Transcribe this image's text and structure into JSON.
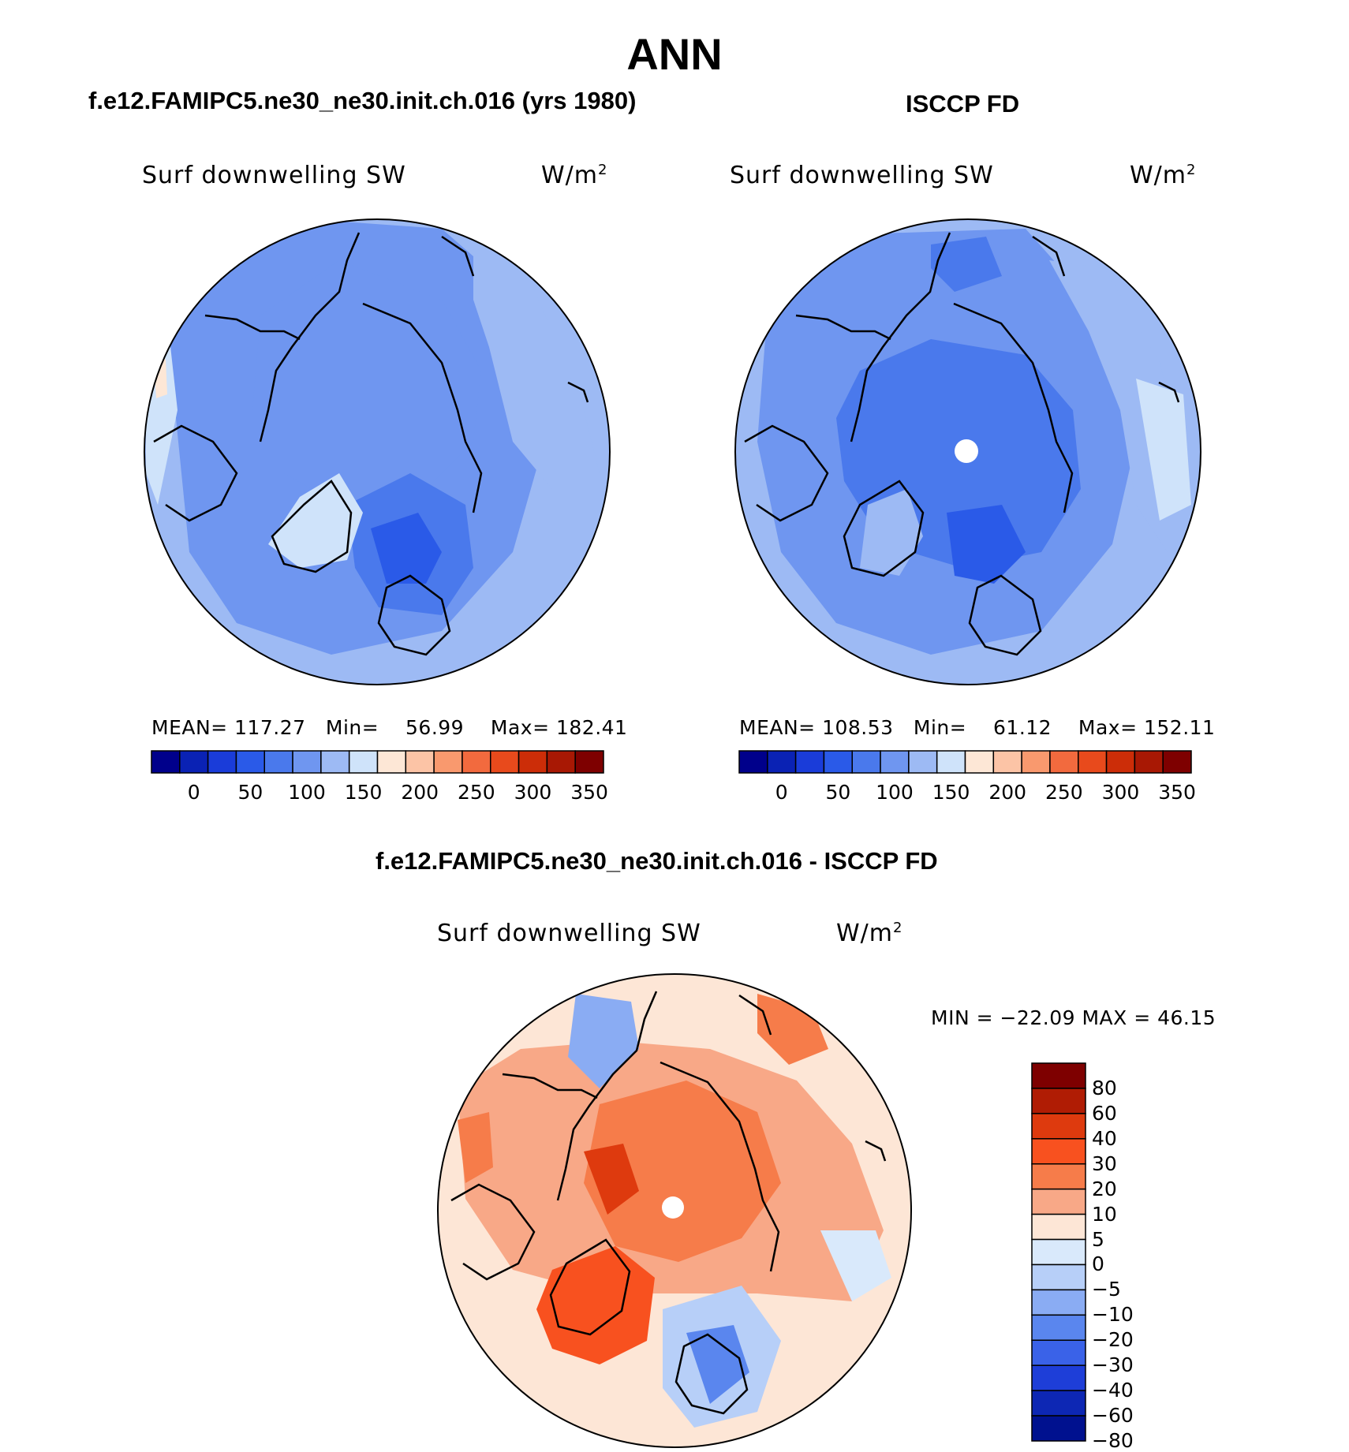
{
  "figure": {
    "season": "ANN",
    "panels": [
      {
        "case_title": "f.e12.FAMIPC5.ne30_ne30.init.ch.016 (yrs 1980)",
        "variable": "Surf downwelling SW",
        "units": "W/m",
        "units_exponent": "2",
        "stats": {
          "mean_label": "MEAN=",
          "mean": "117.27",
          "min_label": "Min=",
          "min": "56.99",
          "max_label": "Max=",
          "max": "182.41"
        }
      },
      {
        "case_title": "ISCCP FD",
        "variable": "Surf downwelling SW",
        "units": "W/m",
        "units_exponent": "2",
        "stats": {
          "mean_label": "MEAN=",
          "mean": "108.53",
          "min_label": "Min=",
          "min": "61.12",
          "max_label": "Max=",
          "max": "152.11"
        }
      },
      {
        "case_title": "f.e12.FAMIPC5.ne30_ne30.init.ch.016 - ISCCP FD",
        "variable": "Surf downwelling SW",
        "units": "W/m",
        "units_exponent": "2",
        "stats_text": "MIN = −22.09 MAX =   46.15"
      }
    ],
    "colorbar_abs": {
      "labels": [
        "0",
        "50",
        "100",
        "150",
        "200",
        "250",
        "300",
        "350"
      ],
      "colors": [
        "#00008b",
        "#0a22b4",
        "#1a3cd9",
        "#2a5ae8",
        "#4a79ec",
        "#6f96f0",
        "#9dbaf4",
        "#cfe3fa",
        "#fde7d6",
        "#fcc4a6",
        "#f9996e",
        "#f26a3e",
        "#e84a1c",
        "#cc2d08",
        "#a81804",
        "#7e0000"
      ]
    },
    "colorbar_diff": {
      "labels": [
        "80",
        "60",
        "40",
        "30",
        "20",
        "10",
        "5",
        "0",
        "−5",
        "−10",
        "−20",
        "−30",
        "−40",
        "−60",
        "−80"
      ],
      "colors": [
        "#7e0000",
        "#b01c04",
        "#de3a0e",
        "#f8511f",
        "#f67c4a",
        "#f8a887",
        "#fde6d6",
        "#d9e9fb",
        "#b7cff8",
        "#8aacf3",
        "#5a86ee",
        "#3a62e8",
        "#1e3ed8",
        "#0d27b4",
        "#00118f"
      ]
    },
    "colors": {
      "land_outline": "#000000",
      "pole_marker": "#ffffff"
    }
  }
}
